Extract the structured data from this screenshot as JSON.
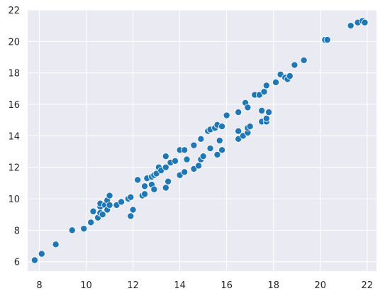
{
  "chart_data": {
    "type": "scatter",
    "title": "",
    "xlabel": "",
    "ylabel": "",
    "xlim": [
      7.5,
      22.4
    ],
    "ylim": [
      5.4,
      22.0
    ],
    "grid": true,
    "colors": {
      "background": "#ffffff",
      "plot_area": "#eaeaf2",
      "grid": "#ffffff",
      "marker_fill": "#1f77b4",
      "marker_edge": "#ffffff",
      "text": "#262626"
    },
    "x_ticks": [
      8,
      10,
      12,
      14,
      16,
      18,
      20,
      22
    ],
    "y_ticks": [
      6,
      8,
      10,
      12,
      14,
      16,
      18,
      20,
      22
    ],
    "x_tick_labels": [
      "8",
      "10",
      "12",
      "14",
      "16",
      "18",
      "20",
      "22"
    ],
    "y_tick_labels": [
      "6",
      "8",
      "10",
      "12",
      "14",
      "16",
      "18",
      "20",
      "22"
    ],
    "points": [
      [
        7.8,
        6.1
      ],
      [
        8.1,
        6.5
      ],
      [
        8.7,
        7.1
      ],
      [
        9.4,
        8.0
      ],
      [
        9.9,
        8.1
      ],
      [
        10.2,
        8.5
      ],
      [
        10.3,
        9.2
      ],
      [
        10.5,
        8.8
      ],
      [
        10.6,
        9.1
      ],
      [
        10.6,
        9.5
      ],
      [
        10.6,
        9.7
      ],
      [
        10.7,
        9.0
      ],
      [
        10.8,
        9.6
      ],
      [
        10.9,
        9.3
      ],
      [
        10.9,
        9.9
      ],
      [
        11.0,
        10.2
      ],
      [
        11.0,
        9.6
      ],
      [
        11.3,
        9.6
      ],
      [
        11.5,
        9.8
      ],
      [
        11.8,
        10.0
      ],
      [
        11.9,
        8.9
      ],
      [
        12.0,
        9.3
      ],
      [
        11.9,
        10.1
      ],
      [
        12.2,
        11.2
      ],
      [
        12.4,
        10.2
      ],
      [
        12.5,
        10.3
      ],
      [
        12.5,
        10.8
      ],
      [
        12.6,
        11.3
      ],
      [
        12.8,
        10.9
      ],
      [
        12.8,
        11.4
      ],
      [
        12.9,
        10.6
      ],
      [
        12.9,
        11.5
      ],
      [
        13.0,
        11.6
      ],
      [
        13.1,
        12.0
      ],
      [
        13.2,
        11.8
      ],
      [
        13.4,
        12.0
      ],
      [
        13.4,
        10.7
      ],
      [
        13.4,
        12.7
      ],
      [
        13.5,
        11.1
      ],
      [
        13.6,
        12.3
      ],
      [
        13.8,
        12.4
      ],
      [
        14.0,
        11.5
      ],
      [
        14.0,
        13.1
      ],
      [
        14.2,
        11.7
      ],
      [
        14.2,
        13.1
      ],
      [
        14.3,
        12.5
      ],
      [
        14.6,
        11.9
      ],
      [
        14.6,
        13.4
      ],
      [
        14.8,
        12.1
      ],
      [
        14.9,
        12.5
      ],
      [
        14.9,
        13.8
      ],
      [
        15.0,
        12.7
      ],
      [
        15.2,
        14.3
      ],
      [
        15.3,
        13.2
      ],
      [
        15.3,
        14.4
      ],
      [
        15.5,
        14.5
      ],
      [
        15.6,
        14.7
      ],
      [
        15.6,
        12.8
      ],
      [
        15.7,
        13.7
      ],
      [
        15.8,
        14.6
      ],
      [
        15.8,
        13.1
      ],
      [
        16.0,
        15.3
      ],
      [
        16.5,
        13.8
      ],
      [
        16.5,
        14.3
      ],
      [
        16.5,
        15.5
      ],
      [
        16.7,
        14.0
      ],
      [
        16.8,
        16.1
      ],
      [
        16.9,
        14.2
      ],
      [
        16.9,
        14.5
      ],
      [
        16.9,
        15.8
      ],
      [
        17.0,
        14.6
      ],
      [
        17.2,
        16.6
      ],
      [
        17.4,
        16.6
      ],
      [
        17.5,
        15.6
      ],
      [
        17.5,
        14.9
      ],
      [
        17.6,
        16.8
      ],
      [
        17.7,
        14.9
      ],
      [
        17.7,
        15.1
      ],
      [
        17.8,
        15.5
      ],
      [
        17.7,
        17.2
      ],
      [
        18.1,
        17.4
      ],
      [
        18.3,
        17.9
      ],
      [
        18.5,
        17.7
      ],
      [
        18.6,
        17.6
      ],
      [
        18.7,
        17.8
      ],
      [
        18.9,
        18.5
      ],
      [
        19.3,
        18.8
      ],
      [
        20.2,
        20.1
      ],
      [
        20.3,
        20.1
      ],
      [
        21.3,
        21.0
      ],
      [
        21.6,
        21.2
      ],
      [
        21.8,
        21.3
      ],
      [
        21.9,
        21.2
      ]
    ]
  }
}
